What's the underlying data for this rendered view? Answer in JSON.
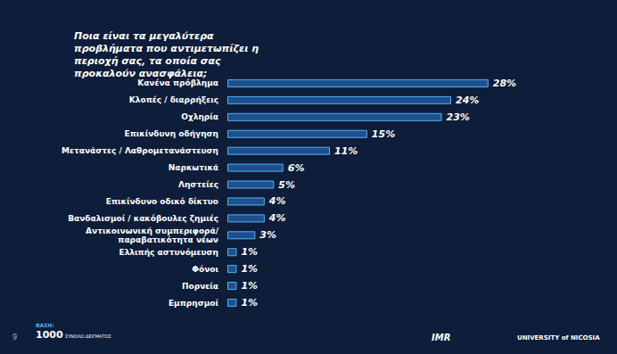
{
  "chart_data": {
    "type": "bar",
    "title": "Ποια είναι τα μεγαλύτερα προβλήματα που αντιμετωπίζει η περιοχή σας, τα οποία σας προκαλούν ανασφάλεια;",
    "categories": [
      "Κανένα πρόβλημα",
      "Κλοπές / διαρρήξεις",
      "Οχληρία",
      "Επικίνδυνη οδήγηση",
      "Μετανάστες / Λαθρομετανάστευση",
      "Ναρκωτικά",
      "Ληστείες",
      "Επικίνδυνο οδικό δίκτυο",
      "Βανδαλισμοί / κακόβουλες ζημιές",
      "Αντικοινωνική συμπεριφορά/\nπαραβατικότητα νέων",
      "Ελλιπής αστυνόμευση",
      "Φόνοι",
      "Πορνεία",
      "Εμπρησμοί"
    ],
    "values": [
      28,
      24,
      23,
      15,
      11,
      6,
      5,
      4,
      4,
      3,
      1,
      1,
      1,
      1
    ],
    "value_labels": [
      "28%",
      "24%",
      "23%",
      "15%",
      "11%",
      "6%",
      "5%",
      "4%",
      "4%",
      "3%",
      "1%",
      "1%",
      "1%",
      "1%"
    ],
    "color": "#1f4f8f",
    "orientation": "horizontal",
    "data_labels": true,
    "tick_labels": "y",
    "grid": false,
    "xlim": [
      0,
      35
    ],
    "footer": {
      "page": "9",
      "base_label": "ΒΑΣΗ:",
      "base": "1000",
      "base_text": "ΣΥΝΟΛΟ ΔΕΙΓΜΑΤΟΣ",
      "logos": [
        "IMR",
        "UNIVERSITY of NICOSIA"
      ]
    }
  }
}
